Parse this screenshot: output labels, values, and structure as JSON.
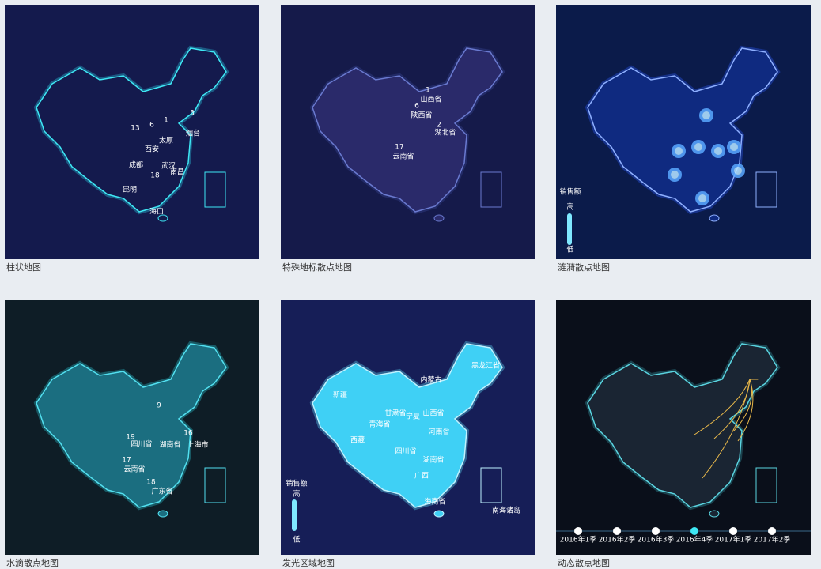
{
  "cards": [
    {
      "title": "柱状地图",
      "labels": [
        "1",
        "6",
        "13",
        "3",
        "18",
        "西安",
        "太原",
        "烟台",
        "成都",
        "武汉",
        "南昌",
        "昆明",
        "海口"
      ]
    },
    {
      "title": "特殊地标散点地图",
      "labels": [
        "1",
        "山西省",
        "6",
        "陕西省",
        "2",
        "湖北省",
        "17",
        "云南省"
      ]
    },
    {
      "title": "涟漪散点地图",
      "labels": [
        "销售额",
        "高",
        "低"
      ]
    },
    {
      "title": "水滴散点地图",
      "labels": [
        "9",
        "19",
        "16",
        "17",
        "18",
        "四川省",
        "湖南省",
        "上海市",
        "云南省",
        "广东省"
      ]
    },
    {
      "title": "发光区域地图",
      "labels": [
        "新疆",
        "西藏",
        "青海省",
        "甘肃省",
        "内蒙古",
        "黑龙江省",
        "山西省",
        "宁夏",
        "河南省",
        "四川省",
        "湖南省",
        "广西",
        "海南省",
        "南海诸岛",
        "销售额",
        "高",
        "低"
      ]
    },
    {
      "title": "动态散点地图",
      "labels": [
        "2016年1季",
        "2016年2季",
        "2016年3季",
        "2016年4季",
        "2017年1季",
        "2017年2季"
      ]
    }
  ]
}
